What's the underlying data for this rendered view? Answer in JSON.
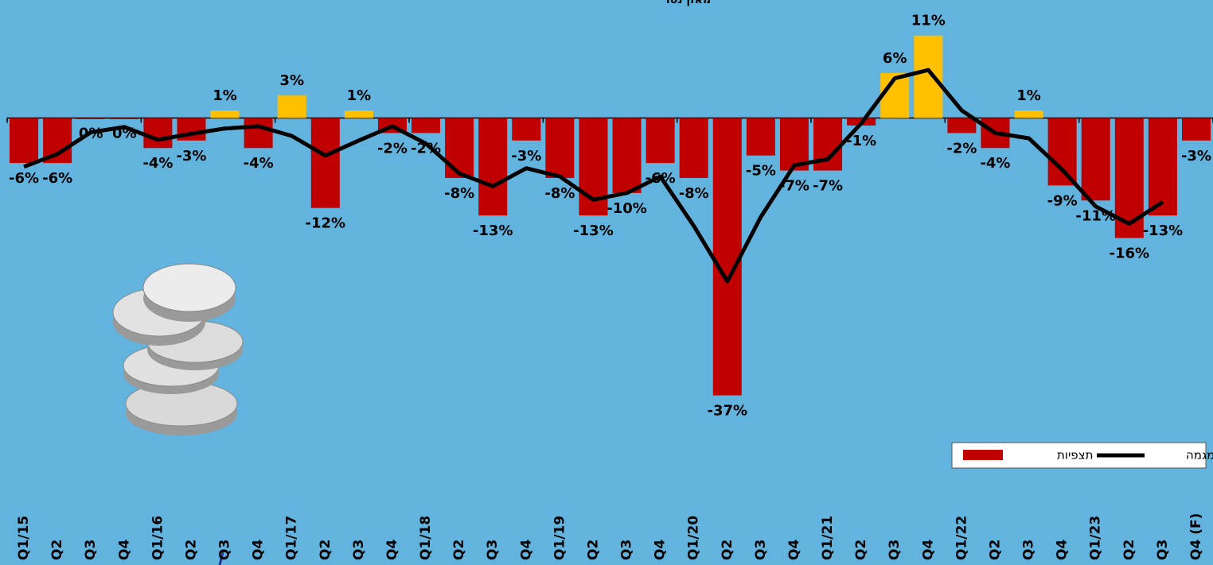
{
  "chart_data": {
    "type": "bar",
    "title": "מאזן נטו",
    "categories": [
      "Q1/15",
      "Q2",
      "Q3",
      "Q4",
      "Q1/16",
      "Q2",
      "Q3",
      "Q4",
      "Q1/17",
      "Q2",
      "Q3",
      "Q4",
      "Q1/18",
      "Q2",
      "Q3",
      "Q4",
      "Q1/19",
      "Q2",
      "Q3",
      "Q4",
      "Q1/20",
      "Q2",
      "Q3",
      "Q4",
      "Q1/21",
      "Q2",
      "Q3",
      "Q4",
      "Q1/22",
      "Q2",
      "Q3",
      "Q4",
      "Q1/23",
      "Q2",
      "Q3",
      "Q4 (F)"
    ],
    "series": [
      {
        "name": "תצפיות",
        "type": "bar",
        "color": "#c00000",
        "positive_color": "#ffc000",
        "values": [
          -6,
          -6,
          0,
          0,
          -4,
          -3,
          1,
          -4,
          3,
          -12,
          1,
          -2,
          -2,
          -8,
          -13,
          -3,
          -8,
          -13,
          -10,
          -6,
          -8,
          -37,
          -5,
          -7,
          -7,
          -1,
          6,
          11,
          -2,
          -4,
          1,
          -9,
          -11,
          -16,
          -13,
          -3
        ],
        "value_labels": [
          "-6%",
          "-6%",
          "0%",
          "0%",
          "-4%",
          "-3%",
          "1%",
          "-4%",
          "3%",
          "-12%",
          "1%",
          "-2%",
          "-2%",
          "-8%",
          "-13%",
          "-3%",
          "-8%",
          "-13%",
          "-10%",
          "-6%",
          "-8%",
          "-37%",
          "-5%",
          "-7%",
          "-7%",
          "-1%",
          "6%",
          "11%",
          "-2%",
          "-4%",
          "1%",
          "-9%",
          "-11%",
          "-16%",
          "-13%",
          "-3%"
        ]
      },
      {
        "name": "מגמה",
        "type": "line",
        "color": "#000000",
        "values": [
          -6.5,
          -4.8,
          -1.9,
          -1.2,
          -2.9,
          -2.1,
          -1.4,
          -1.1,
          -2.4,
          -5.0,
          -3.0,
          -1.1,
          -3.4,
          -7.4,
          -9.1,
          -6.7,
          -7.8,
          -10.9,
          -10.0,
          -7.8,
          -14.4,
          -21.8,
          -13.2,
          -6.3,
          -5.5,
          -0.7,
          5.3,
          6.4,
          1.0,
          -2.0,
          -2.7,
          -6.9,
          -11.8,
          -14.1,
          -11.2,
          null
        ]
      }
    ],
    "ylim": [
      -45,
      15
    ]
  }
}
